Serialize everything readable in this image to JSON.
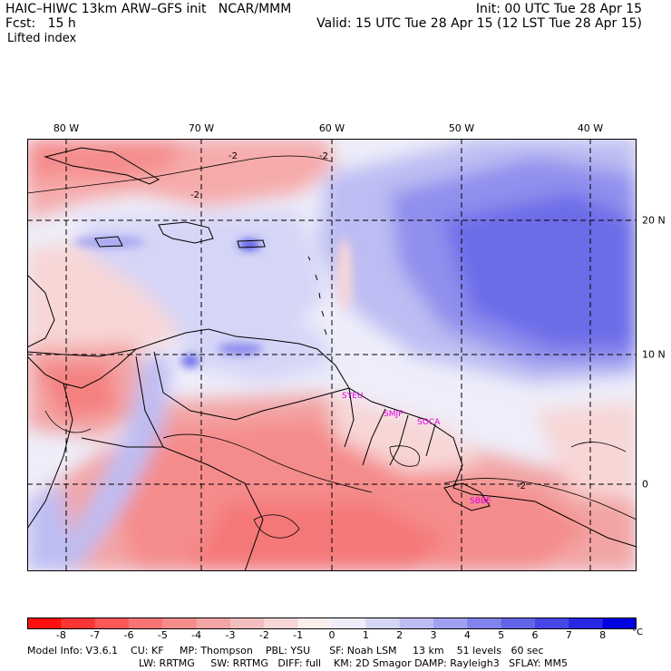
{
  "header": {
    "title_left": "HAIC–HIWC 13km ARW–GFS init   NCAR/MMM",
    "init": "Init: 00 UTC Tue 28 Apr 15",
    "fcst": "Fcst:   15 h",
    "valid": "Valid: 15 UTC Tue 28 Apr 15 (12 LST Tue 28 Apr 15)",
    "field": "Lifted index"
  },
  "map": {
    "lon_labels": [
      "80 W",
      "70 W",
      "60 W",
      "50 W",
      "40 W"
    ],
    "lat_labels": [
      "20 N",
      "10 N",
      "0"
    ],
    "contour_labels": [
      "-2",
      "-2",
      "-2",
      "-2"
    ],
    "stations": [
      "SYEU",
      "SMJP",
      "SOCA",
      "SBBE"
    ]
  },
  "colorbar": {
    "ticks": [
      "-8",
      "-7",
      "-6",
      "-5",
      "-4",
      "-3",
      "-2",
      "-1",
      "0",
      "1",
      "2",
      "3",
      "4",
      "5",
      "6",
      "7",
      "8"
    ],
    "unit": "°C",
    "colors": [
      "#ff1010",
      "#ff3535",
      "#fd5757",
      "#f87474",
      "#f58c8c",
      "#f3a4a4",
      "#f5bebe",
      "#f8d6d6",
      "#fdeeee",
      "#ececfa",
      "#d5d5f7",
      "#bdbdf3",
      "#a0a0f0",
      "#8282ec",
      "#6464e8",
      "#4646e6",
      "#2828e4",
      "#0000e0"
    ]
  },
  "model_info": {
    "line1": "Model Info: V3.6.1    CU: KF     MP: Thompson    PBL: YSU      SF: Noah LSM     13 km    51 levels   60 sec",
    "line2": "LW: RRTMG     SW: RRTMG   DIFF: full    KM: 2D Smagor DAMP: Rayleigh3   SFLAY: MM5"
  }
}
